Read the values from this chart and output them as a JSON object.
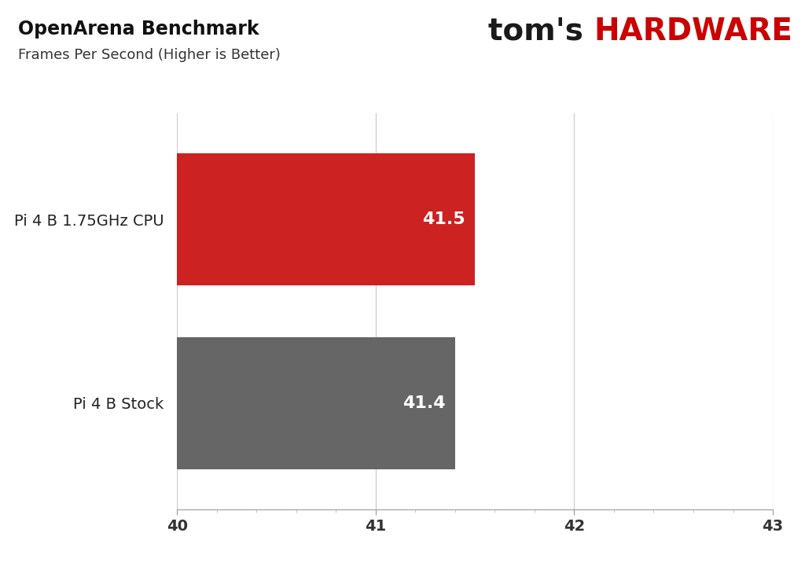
{
  "title_line1": "OpenArena Benchmark",
  "title_line2": "Frames Per Second (Higher is Better)",
  "categories": [
    "Pi 4 B 1.75GHz CPU",
    "Pi 4 B Stock"
  ],
  "values": [
    41.5,
    41.4
  ],
  "bar_colors": [
    "#cc2222",
    "#666666"
  ],
  "xlim_min": 40,
  "xlim_max": 43,
  "xticks": [
    40,
    41,
    42,
    43
  ],
  "background_color": "#ffffff",
  "bar_label_fontsize": 16,
  "ytick_fontsize": 14,
  "xtick_fontsize": 14,
  "title_fontsize1": 17,
  "title_fontsize2": 13,
  "bar_height": 0.72,
  "toms_black": "#1a1a1a",
  "toms_red": "#cc0000",
  "logo_fontsize": 28,
  "value_label_color": "#ffffff",
  "grid_color": "#cccccc",
  "spine_color": "#aaaaaa"
}
